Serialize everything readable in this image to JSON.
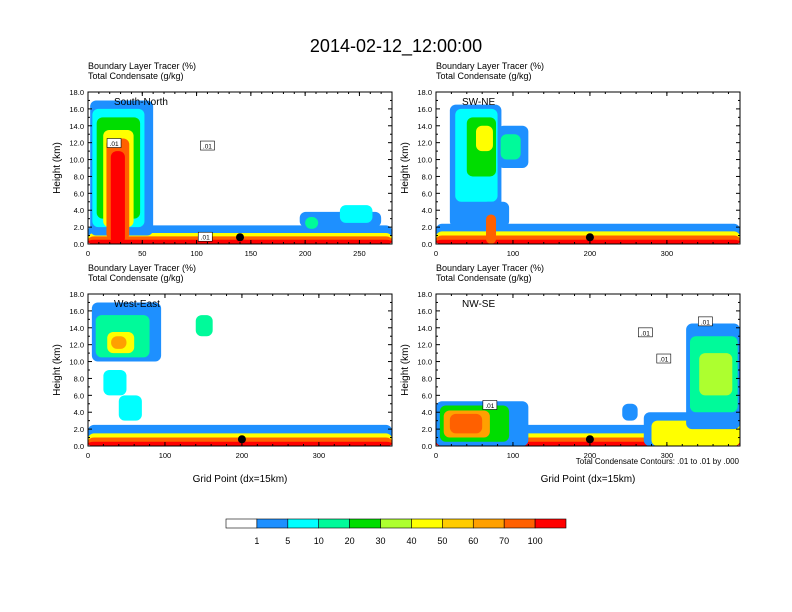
{
  "title": "2014-02-12_12:00:00",
  "chart_data": {
    "type": "heatmap",
    "time": "2014-02-12_12:00:00",
    "field_label": "Boundary Layer Tracer",
    "field_units": "(%)",
    "contour_label": "Total Condensate",
    "contour_units": "(g/kg)",
    "ylabel": "Height (km)",
    "xlabel": "Grid Point (dx=15km)",
    "ylim": [
      0,
      18
    ],
    "yticks": [
      "0.0",
      "2.0",
      "4.0",
      "6.0",
      "8.0",
      "10.0",
      "12.0",
      "14.0",
      "16.0",
      "18.0"
    ],
    "contour_note": "Total Condensate Contours: .01 to .01 by .000",
    "colorbar": {
      "levels": [
        "1",
        "5",
        "10",
        "20",
        "30",
        "40",
        "50",
        "60",
        "70",
        "100"
      ],
      "colors": [
        "#ffffff",
        "#1e90ff",
        "#00ffff",
        "#00fa9a",
        "#00dd00",
        "#adff2f",
        "#ffff00",
        "#ffcc00",
        "#ffa000",
        "#ff6000",
        "#ff0000"
      ]
    },
    "panels": [
      {
        "name": "South-North",
        "xlim": [
          0,
          280
        ],
        "xticks": [
          0,
          50,
          100,
          150,
          200,
          250
        ],
        "marker_x": 140,
        "contour_labels": [
          {
            "text": ".01",
            "x": 24,
            "y": 11.9
          },
          {
            "text": ".01",
            "x": 110,
            "y": 11.6
          },
          {
            "text": ".01",
            "x": 108,
            "y": 0.8
          }
        ],
        "regions": [
          {
            "level": 1,
            "x": [
              0,
              280
            ],
            "y": [
              0,
              2.2
            ]
          },
          {
            "level": 6,
            "x": [
              0,
              280
            ],
            "y": [
              0,
              1.3
            ]
          },
          {
            "level": 9,
            "x": [
              0,
              280
            ],
            "y": [
              0,
              0.9
            ]
          },
          {
            "level": 10,
            "x": [
              0,
              280
            ],
            "y": [
              0,
              0.5
            ]
          },
          {
            "level": 1,
            "x": [
              2,
              60
            ],
            "y": [
              1,
              17
            ]
          },
          {
            "level": 2,
            "x": [
              4,
              52
            ],
            "y": [
              2,
              16
            ]
          },
          {
            "level": 4,
            "x": [
              8,
              48
            ],
            "y": [
              3,
              15
            ]
          },
          {
            "level": 6,
            "x": [
              14,
              42
            ],
            "y": [
              2,
              13.5
            ]
          },
          {
            "level": 9,
            "x": [
              17,
              38
            ],
            "y": [
              0.5,
              12.5
            ]
          },
          {
            "level": 10,
            "x": [
              21,
              34
            ],
            "y": [
              0,
              11
            ]
          },
          {
            "level": 1,
            "x": [
              195,
              270
            ],
            "y": [
              2,
              3.8
            ]
          },
          {
            "level": 2,
            "x": [
              232,
              262
            ],
            "y": [
              2.5,
              4.6
            ]
          },
          {
            "level": 3,
            "x": [
              200,
              212
            ],
            "y": [
              1.8,
              3.2
            ]
          }
        ]
      },
      {
        "name": "SW-NE",
        "xlim": [
          0,
          395
        ],
        "xticks": [
          0,
          100,
          200,
          300
        ],
        "marker_x": 200,
        "contour_labels": [],
        "regions": [
          {
            "level": 1,
            "x": [
              0,
              395
            ],
            "y": [
              0,
              2.4
            ]
          },
          {
            "level": 6,
            "x": [
              0,
              395
            ],
            "y": [
              0,
              1.5
            ]
          },
          {
            "level": 9,
            "x": [
              0,
              395
            ],
            "y": [
              0,
              1.0
            ]
          },
          {
            "level": 10,
            "x": [
              0,
              395
            ],
            "y": [
              0,
              0.5
            ]
          },
          {
            "level": 1,
            "x": [
              18,
              85
            ],
            "y": [
              2,
              16.5
            ]
          },
          {
            "level": 2,
            "x": [
              25,
              80
            ],
            "y": [
              5,
              16
            ]
          },
          {
            "level": 4,
            "x": [
              40,
              78
            ],
            "y": [
              8,
              15
            ]
          },
          {
            "level": 6,
            "x": [
              52,
              74
            ],
            "y": [
              11,
              14
            ]
          },
          {
            "level": 1,
            "x": [
              80,
              120
            ],
            "y": [
              9,
              14
            ]
          },
          {
            "level": 3,
            "x": [
              84,
              110
            ],
            "y": [
              10,
              13
            ]
          },
          {
            "level": 1,
            "x": [
              60,
              95
            ],
            "y": [
              2,
              5
            ]
          },
          {
            "level": 9,
            "x": [
              65,
              78
            ],
            "y": [
              0,
              3.5
            ]
          }
        ]
      },
      {
        "name": "West-East",
        "xlim": [
          0,
          395
        ],
        "xticks": [
          0,
          100,
          200,
          300
        ],
        "marker_x": 200,
        "contour_labels": [],
        "regions": [
          {
            "level": 1,
            "x": [
              0,
              395
            ],
            "y": [
              0,
              2.5
            ]
          },
          {
            "level": 6,
            "x": [
              0,
              395
            ],
            "y": [
              0,
              1.5
            ]
          },
          {
            "level": 9,
            "x": [
              0,
              395
            ],
            "y": [
              0,
              1.0
            ]
          },
          {
            "level": 10,
            "x": [
              0,
              395
            ],
            "y": [
              0,
              0.5
            ]
          },
          {
            "level": 1,
            "x": [
              5,
              95
            ],
            "y": [
              10,
              17
            ]
          },
          {
            "level": 3,
            "x": [
              10,
              80
            ],
            "y": [
              10.5,
              15.5
            ]
          },
          {
            "level": 6,
            "x": [
              25,
              60
            ],
            "y": [
              11,
              13.5
            ]
          },
          {
            "level": 8,
            "x": [
              30,
              50
            ],
            "y": [
              11.5,
              13
            ]
          },
          {
            "level": 3,
            "x": [
              140,
              162
            ],
            "y": [
              13,
              15.5
            ]
          },
          {
            "level": 2,
            "x": [
              20,
              50
            ],
            "y": [
              6,
              9
            ]
          },
          {
            "level": 2,
            "x": [
              40,
              70
            ],
            "y": [
              3,
              6
            ]
          }
        ]
      },
      {
        "name": "NW-SE",
        "xlim": [
          0,
          395
        ],
        "xticks": [
          0,
          100,
          200,
          300
        ],
        "marker_x": 200,
        "contour_labels": [
          {
            "text": ".01",
            "x": 272,
            "y": 13.4
          },
          {
            "text": ".01",
            "x": 350,
            "y": 14.7
          },
          {
            "text": ".01",
            "x": 296,
            "y": 10.3
          },
          {
            "text": ".01",
            "x": 70,
            "y": 4.8
          }
        ],
        "regions": [
          {
            "level": 1,
            "x": [
              0,
              395
            ],
            "y": [
              0,
              2.5
            ]
          },
          {
            "level": 6,
            "x": [
              0,
              395
            ],
            "y": [
              0,
              1.5
            ]
          },
          {
            "level": 9,
            "x": [
              0,
              395
            ],
            "y": [
              0,
              1.0
            ]
          },
          {
            "level": 10,
            "x": [
              0,
              395
            ],
            "y": [
              0,
              0.5
            ]
          },
          {
            "level": 1,
            "x": [
              0,
              120
            ],
            "y": [
              0,
              5.3
            ]
          },
          {
            "level": 4,
            "x": [
              5,
              95
            ],
            "y": [
              0.5,
              4.8
            ]
          },
          {
            "level": 8,
            "x": [
              10,
              70
            ],
            "y": [
              1,
              4.2
            ]
          },
          {
            "level": 9,
            "x": [
              18,
              60
            ],
            "y": [
              1.5,
              3.8
            ]
          },
          {
            "level": 1,
            "x": [
              270,
              395
            ],
            "y": [
              0,
              4
            ]
          },
          {
            "level": 6,
            "x": [
              280,
              395
            ],
            "y": [
              0,
              3
            ]
          },
          {
            "level": 1,
            "x": [
              325,
              395
            ],
            "y": [
              2,
              14.5
            ]
          },
          {
            "level": 3,
            "x": [
              330,
              392
            ],
            "y": [
              4,
              13
            ]
          },
          {
            "level": 5,
            "x": [
              342,
              385
            ],
            "y": [
              6,
              11
            ]
          },
          {
            "level": 1,
            "x": [
              242,
              262
            ],
            "y": [
              3,
              5
            ]
          }
        ]
      }
    ]
  }
}
